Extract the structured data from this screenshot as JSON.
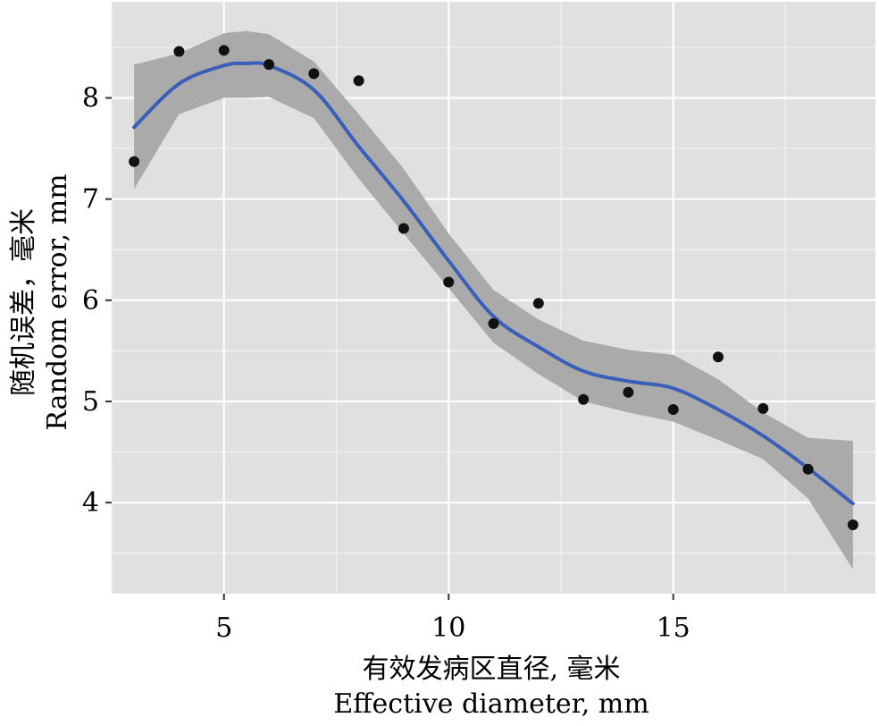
{
  "chart_data": {
    "type": "scatter",
    "xlabel_cn": "有效发病区直径, 毫米",
    "xlabel_en": "Effective diameter,  mm",
    "ylabel_cn": "随机误差，毫米",
    "ylabel_en": "Random error,  mm",
    "xlim": [
      2.5,
      19.5
    ],
    "ylim": [
      3.1,
      8.95
    ],
    "x_ticks": [
      5,
      10,
      15
    ],
    "y_ticks": [
      4,
      5,
      6,
      7,
      8
    ],
    "grid": true,
    "background": "#e0e0e0",
    "point_color": "#111111",
    "smooth_color": "#3a5fb8",
    "band_color": "#a6a6a6",
    "series": [
      {
        "points": [
          {
            "x": 3,
            "y": 7.37
          },
          {
            "x": 4,
            "y": 8.46
          },
          {
            "x": 5,
            "y": 8.47
          },
          {
            "x": 6,
            "y": 8.33
          },
          {
            "x": 7,
            "y": 8.24
          },
          {
            "x": 8,
            "y": 8.17
          },
          {
            "x": 9,
            "y": 6.71
          },
          {
            "x": 10,
            "y": 6.18
          },
          {
            "x": 11,
            "y": 5.77
          },
          {
            "x": 12,
            "y": 5.97
          },
          {
            "x": 13,
            "y": 5.02
          },
          {
            "x": 14,
            "y": 5.09
          },
          {
            "x": 15,
            "y": 4.92
          },
          {
            "x": 16,
            "y": 5.44
          },
          {
            "x": 17,
            "y": 4.93
          },
          {
            "x": 18,
            "y": 4.33
          },
          {
            "x": 19,
            "y": 3.78
          }
        ]
      }
    ],
    "smooth": {
      "x": [
        3,
        4,
        5,
        5.5,
        6,
        7,
        8,
        9,
        10,
        11,
        12,
        13,
        14,
        15,
        16,
        17,
        18,
        19
      ],
      "y": [
        7.71,
        8.14,
        8.32,
        8.34,
        8.32,
        8.08,
        7.52,
        6.98,
        6.39,
        5.84,
        5.54,
        5.3,
        5.2,
        5.13,
        4.92,
        4.66,
        4.34,
        3.99
      ],
      "lower": [
        7.1,
        7.84,
        8.0,
        8.0,
        8.01,
        7.8,
        7.2,
        6.66,
        6.12,
        5.58,
        5.27,
        5.0,
        4.89,
        4.8,
        4.62,
        4.43,
        4.04,
        3.34
      ],
      "upper": [
        8.33,
        8.44,
        8.64,
        8.66,
        8.63,
        8.36,
        7.84,
        7.3,
        6.66,
        6.1,
        5.81,
        5.6,
        5.51,
        5.46,
        5.22,
        4.89,
        4.64,
        4.61
      ]
    }
  }
}
